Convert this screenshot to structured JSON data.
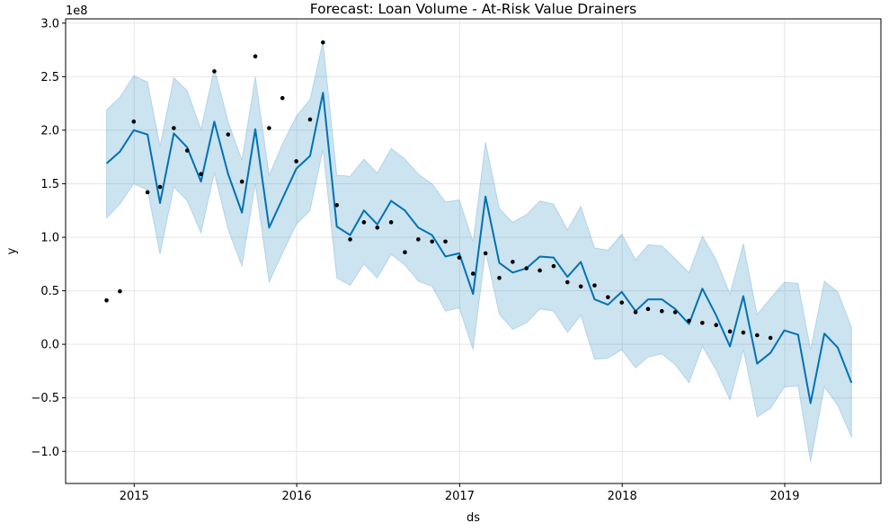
{
  "chart_data": {
    "type": "line",
    "title": "Forecast: Loan Volume - At-Risk Value Drainers",
    "xlabel": "ds",
    "ylabel": "y",
    "y_offset_label": "1e8",
    "x_tick_labels": [
      "2015",
      "2016",
      "2017",
      "2018",
      "2019"
    ],
    "y_tick_labels": [
      "−1.0",
      "−0.5",
      "0.0",
      "0.5",
      "1.0",
      "1.5",
      "2.0",
      "2.5",
      "3.0"
    ],
    "y_tick_values": [
      -100000000,
      -50000000,
      0,
      50000000,
      100000000,
      150000000,
      200000000,
      250000000,
      300000000
    ],
    "xlim": [
      "2014-07-31",
      "2019-08-05"
    ],
    "ylim": [
      -130000000,
      304000000
    ],
    "grid": true,
    "colors": {
      "forecast_line": "#0072B2",
      "uncertainty_band": "#0072B2",
      "actual_points": "#000000",
      "grid": "#e6e6e6"
    },
    "series": [
      {
        "role": "actual",
        "style": "scatter",
        "points": [
          [
            "2014-10-31",
            41000000
          ],
          [
            "2014-11-30",
            49500000
          ],
          [
            "2014-12-31",
            208000000
          ],
          [
            "2015-01-31",
            142000000
          ],
          [
            "2015-02-28",
            147000000
          ],
          [
            "2015-03-31",
            202000000
          ],
          [
            "2015-04-30",
            181000000
          ],
          [
            "2015-05-31",
            159000000
          ],
          [
            "2015-06-30",
            255000000
          ],
          [
            "2015-07-31",
            196000000
          ],
          [
            "2015-08-31",
            152000000
          ],
          [
            "2015-09-30",
            269000000
          ],
          [
            "2015-10-31",
            202000000
          ],
          [
            "2015-11-30",
            230000000
          ],
          [
            "2015-12-31",
            171000000
          ],
          [
            "2016-01-31",
            210000000
          ],
          [
            "2016-02-29",
            282000000
          ],
          [
            "2016-03-31",
            130000000
          ],
          [
            "2016-04-30",
            98000000
          ],
          [
            "2016-05-31",
            114000000
          ],
          [
            "2016-06-30",
            109000000
          ],
          [
            "2016-07-31",
            114000000
          ],
          [
            "2016-08-31",
            86000000
          ],
          [
            "2016-09-30",
            98000000
          ],
          [
            "2016-10-31",
            96000000
          ],
          [
            "2016-11-30",
            96000000
          ],
          [
            "2016-12-31",
            81000000
          ],
          [
            "2017-01-31",
            66000000
          ],
          [
            "2017-02-28",
            85000000
          ],
          [
            "2017-03-31",
            62000000
          ],
          [
            "2017-04-30",
            77000000
          ],
          [
            "2017-05-31",
            71000000
          ],
          [
            "2017-06-30",
            69000000
          ],
          [
            "2017-07-31",
            73000000
          ],
          [
            "2017-08-31",
            58000000
          ],
          [
            "2017-09-30",
            54000000
          ],
          [
            "2017-10-31",
            55000000
          ],
          [
            "2017-11-30",
            44000000
          ],
          [
            "2017-12-31",
            39000000
          ],
          [
            "2018-01-31",
            30000000
          ],
          [
            "2018-02-28",
            33000000
          ],
          [
            "2018-03-31",
            31000000
          ],
          [
            "2018-04-30",
            30000000
          ],
          [
            "2018-05-31",
            22000000
          ],
          [
            "2018-06-30",
            20000000
          ],
          [
            "2018-07-31",
            18000000
          ],
          [
            "2018-08-31",
            12000000
          ],
          [
            "2018-09-30",
            11000000
          ],
          [
            "2018-10-31",
            8500000
          ],
          [
            "2018-11-30",
            6000000
          ]
        ]
      },
      {
        "role": "forecast",
        "style": "line_with_band",
        "points": [
          [
            "2014-10-31",
            169000000,
            118000000,
            219000000
          ],
          [
            "2014-11-30",
            180000000,
            131000000,
            231000000
          ],
          [
            "2014-12-31",
            200000000,
            150000000,
            251000000
          ],
          [
            "2015-01-31",
            196000000,
            144000000,
            245000000
          ],
          [
            "2015-02-28",
            132000000,
            84000000,
            185000000
          ],
          [
            "2015-03-31",
            197000000,
            147000000,
            249000000
          ],
          [
            "2015-04-30",
            184000000,
            134000000,
            237000000
          ],
          [
            "2015-05-31",
            152000000,
            104000000,
            201000000
          ],
          [
            "2015-06-30",
            208000000,
            160000000,
            258000000
          ],
          [
            "2015-07-31",
            159000000,
            107000000,
            208000000
          ],
          [
            "2015-08-31",
            123000000,
            73000000,
            172000000
          ],
          [
            "2015-09-30",
            201000000,
            150000000,
            250000000
          ],
          [
            "2015-10-31",
            109000000,
            58000000,
            158000000
          ],
          [
            "2015-11-30",
            136000000,
            85000000,
            187000000
          ],
          [
            "2015-12-31",
            164000000,
            112000000,
            213000000
          ],
          [
            "2016-01-31",
            176000000,
            125000000,
            229000000
          ],
          [
            "2016-02-29",
            235000000,
            182000000,
            283000000
          ],
          [
            "2016-03-31",
            110000000,
            62000000,
            158000000
          ],
          [
            "2016-04-30",
            102000000,
            55000000,
            157000000
          ],
          [
            "2016-05-31",
            125000000,
            75000000,
            173000000
          ],
          [
            "2016-06-30",
            112000000,
            62000000,
            160000000
          ],
          [
            "2016-07-31",
            134000000,
            84000000,
            183000000
          ],
          [
            "2016-08-31",
            125000000,
            74000000,
            173000000
          ],
          [
            "2016-09-30",
            109000000,
            59000000,
            159000000
          ],
          [
            "2016-10-31",
            102000000,
            54000000,
            150000000
          ],
          [
            "2016-11-30",
            82000000,
            31000000,
            133000000
          ],
          [
            "2016-12-31",
            85000000,
            34000000,
            135000000
          ],
          [
            "2017-01-31",
            47000000,
            -5000000,
            96000000
          ],
          [
            "2017-02-28",
            138000000,
            87000000,
            189000000
          ],
          [
            "2017-03-31",
            76000000,
            28000000,
            127000000
          ],
          [
            "2017-04-30",
            67000000,
            14000000,
            114000000
          ],
          [
            "2017-05-31",
            71000000,
            20000000,
            121000000
          ],
          [
            "2017-06-30",
            82000000,
            33000000,
            134000000
          ],
          [
            "2017-07-31",
            81000000,
            31000000,
            131000000
          ],
          [
            "2017-08-31",
            63000000,
            11000000,
            107000000
          ],
          [
            "2017-09-30",
            77000000,
            27000000,
            129000000
          ],
          [
            "2017-10-31",
            42000000,
            -14000000,
            90000000
          ],
          [
            "2017-11-30",
            37000000,
            -13000000,
            88000000
          ],
          [
            "2017-12-31",
            49000000,
            -5000000,
            103000000
          ],
          [
            "2018-01-31",
            31000000,
            -22000000,
            79000000
          ],
          [
            "2018-02-28",
            42000000,
            -12000000,
            93000000
          ],
          [
            "2018-03-31",
            42000000,
            -9000000,
            92000000
          ],
          [
            "2018-04-30",
            33000000,
            -19000000,
            80000000
          ],
          [
            "2018-05-31",
            19000000,
            -36000000,
            67000000
          ],
          [
            "2018-06-30",
            52000000,
            -2000000,
            101000000
          ],
          [
            "2018-07-31",
            27000000,
            -24000000,
            79000000
          ],
          [
            "2018-08-31",
            -2000000,
            -52000000,
            47000000
          ],
          [
            "2018-09-30",
            45000000,
            -5000000,
            94000000
          ],
          [
            "2018-10-31",
            -18000000,
            -68000000,
            28000000
          ],
          [
            "2018-11-30",
            -8000000,
            -60000000,
            43000000
          ],
          [
            "2018-12-31",
            13000000,
            -40000000,
            58000000
          ],
          [
            "2019-01-31",
            9000000,
            -39000000,
            57000000
          ],
          [
            "2019-02-28",
            -55000000,
            -110000000,
            -5000000
          ],
          [
            "2019-03-31",
            10000000,
            -40000000,
            59000000
          ],
          [
            "2019-04-30",
            -3000000,
            -57000000,
            49000000
          ],
          [
            "2019-05-31",
            -36000000,
            -87000000,
            16000000
          ]
        ]
      }
    ]
  }
}
